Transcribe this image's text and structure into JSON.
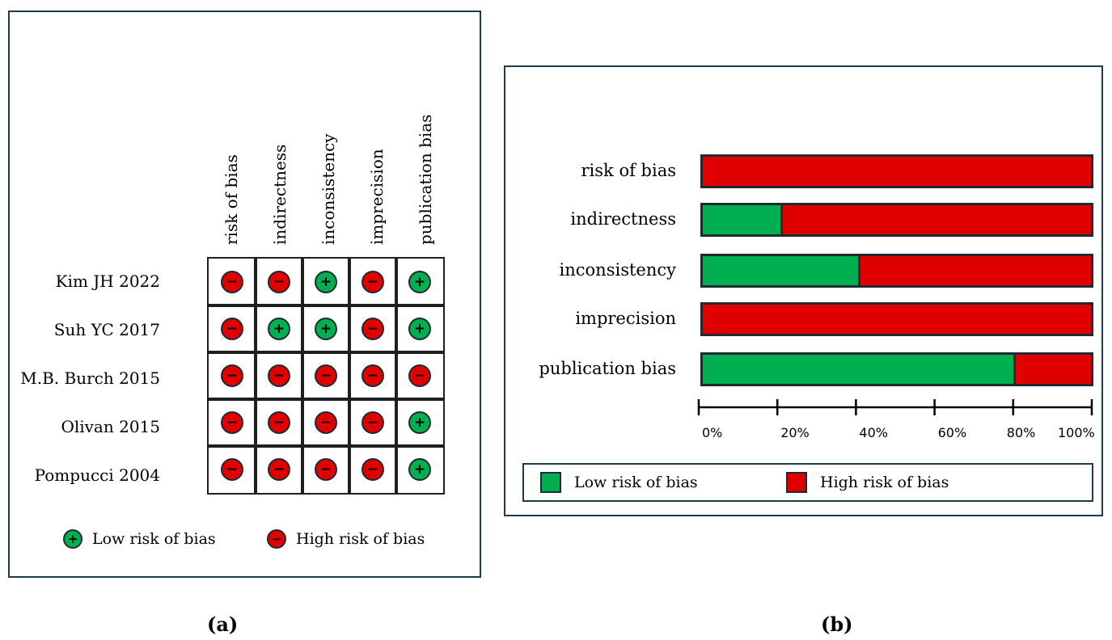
{
  "chart_data": [
    {
      "type": "table",
      "panel": "(a)",
      "columns": [
        "risk of bias",
        "indirectness",
        "inconsistency",
        "imprecision",
        "publication bias"
      ],
      "rows": [
        {
          "study": "Kim JH  2022",
          "judgements": [
            "high",
            "high",
            "low",
            "high",
            "low"
          ]
        },
        {
          "study": "Suh YC 2017",
          "judgements": [
            "high",
            "low",
            "low",
            "high",
            "low"
          ]
        },
        {
          "study": "M.B. Burch  2015",
          "judgements": [
            "high",
            "high",
            "high",
            "high",
            "high"
          ]
        },
        {
          "study": "Olivan  2015",
          "judgements": [
            "high",
            "high",
            "high",
            "high",
            "low"
          ]
        },
        {
          "study": "Pompucci 2004",
          "judgements": [
            "high",
            "high",
            "high",
            "high",
            "low"
          ]
        }
      ],
      "symbols": {
        "low": "+",
        "high": "−"
      },
      "legend": {
        "low": "Low risk of bias",
        "high": "High risk of bias"
      }
    },
    {
      "type": "bar",
      "orientation": "horizontal",
      "stacked": true,
      "panel": "(b)",
      "categories": [
        "risk of bias",
        "indirectness",
        "inconsistency",
        "imprecision",
        "publication bias"
      ],
      "series": [
        {
          "name": "Low risk of bias",
          "values": [
            0,
            20,
            40,
            0,
            80
          ]
        },
        {
          "name": "High risk of bias",
          "values": [
            100,
            80,
            60,
            100,
            20
          ]
        }
      ],
      "xlim": [
        0,
        100
      ],
      "xticks": [
        "0%",
        "20%",
        "40%",
        "60%",
        "80%",
        "100%"
      ],
      "legend": {
        "low": "Low risk of bias",
        "high": "High risk of bias"
      }
    }
  ],
  "colors": {
    "low": "#00b050",
    "high": "#e00000",
    "border": "#1f2a33"
  },
  "captions": {
    "a": "(a)",
    "b": "(b)"
  }
}
